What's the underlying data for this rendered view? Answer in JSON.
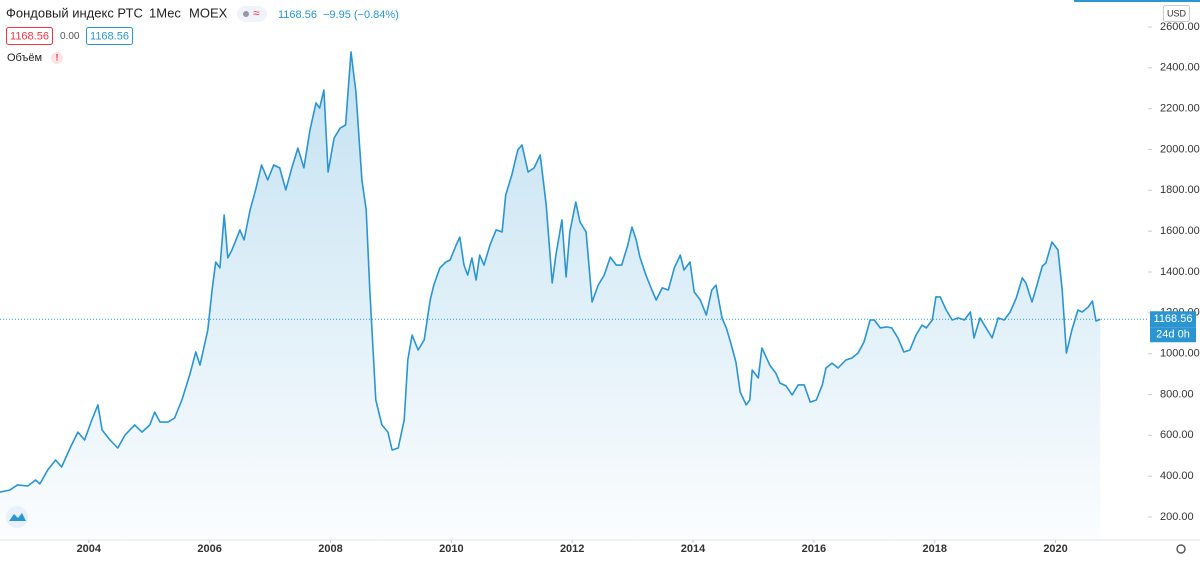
{
  "header": {
    "title": "Фондовый индекс РТС",
    "interval": "1Мес",
    "exchange": "MOEX",
    "price": "1168.56",
    "change": "−9.95 (−0.84%)",
    "bid": "1168.56",
    "spread": "0.00",
    "ask": "1168.56",
    "volume": "Объём",
    "alert": "!",
    "currency": "USD",
    "countdown": "24d 0h"
  },
  "chart_data": {
    "type": "area",
    "color": "#2a95d0",
    "last_value": 1168.56,
    "xlim": [
      2002.53,
      2021.53
    ],
    "ylim": [
      200,
      2600
    ],
    "xticks": [
      2004,
      2006,
      2008,
      2010,
      2012,
      2014,
      2016,
      2018,
      2020
    ],
    "yticks": [
      {
        "value": 200,
        "label": "200.00"
      },
      {
        "value": 400,
        "label": "400.00"
      },
      {
        "value": 600,
        "label": "600.00"
      },
      {
        "value": 800,
        "label": "800.00"
      },
      {
        "value": 1000,
        "label": "1000.00"
      },
      {
        "value": 1200,
        "label": "1200.00"
      },
      {
        "value": 1400,
        "label": "1400.00"
      },
      {
        "value": 1600,
        "label": "1600.00"
      },
      {
        "value": 1800,
        "label": "1800.00"
      },
      {
        "value": 2000,
        "label": "2000.00"
      },
      {
        "value": 2200,
        "label": "2200.00"
      },
      {
        "value": 2400,
        "label": "2400.00"
      },
      {
        "value": 2600,
        "label": "2600.00"
      }
    ],
    "x": [
      2002.53,
      2002.69,
      2002.82,
      2002.99,
      2003.12,
      2003.19,
      2003.32,
      2003.45,
      2003.55,
      2003.69,
      2003.82,
      2003.93,
      2004.05,
      2004.15,
      2004.22,
      2004.35,
      2004.48,
      2004.6,
      2004.76,
      2004.88,
      2005.01,
      2005.09,
      2005.18,
      2005.31,
      2005.42,
      2005.54,
      2005.67,
      2005.77,
      2005.84,
      2005.97,
      2006.04,
      2006.1,
      2006.17,
      2006.24,
      2006.3,
      2006.37,
      2006.5,
      2006.57,
      2006.67,
      2006.76,
      2006.86,
      2006.96,
      2007.06,
      2007.16,
      2007.26,
      2007.36,
      2007.46,
      2007.56,
      2007.66,
      2007.76,
      2007.82,
      2007.89,
      2007.96,
      2008.06,
      2008.16,
      2008.25,
      2008.34,
      2008.42,
      2008.52,
      2008.59,
      2008.65,
      2008.75,
      2008.85,
      2008.95,
      2009.02,
      2009.12,
      2009.22,
      2009.28,
      2009.35,
      2009.45,
      2009.55,
      2009.65,
      2009.71,
      2009.81,
      2009.91,
      2009.98,
      2010.08,
      2010.14,
      2010.21,
      2010.27,
      2010.34,
      2010.41,
      2010.47,
      2010.54,
      2010.64,
      2010.74,
      2010.84,
      2010.9,
      2011.0,
      2011.1,
      2011.17,
      2011.27,
      2011.37,
      2011.47,
      2011.57,
      2011.67,
      2011.73,
      2011.83,
      2011.9,
      2011.96,
      2012.06,
      2012.13,
      2012.23,
      2012.33,
      2012.43,
      2012.53,
      2012.63,
      2012.73,
      2012.82,
      2012.92,
      2012.99,
      2013.06,
      2013.12,
      2013.22,
      2013.32,
      2013.39,
      2013.49,
      2013.59,
      2013.69,
      2013.79,
      2013.85,
      2013.95,
      2014.02,
      2014.12,
      2014.22,
      2014.31,
      2014.38,
      2014.48,
      2014.55,
      2014.61,
      2014.71,
      2014.78,
      2014.88,
      2014.94,
      2014.98,
      2015.08,
      2015.14,
      2015.27,
      2015.37,
      2015.44,
      2015.54,
      2015.64,
      2015.74,
      2015.84,
      2015.94,
      2016.04,
      2016.14,
      2016.2,
      2016.3,
      2016.4,
      2016.53,
      2016.63,
      2016.73,
      2016.83,
      2016.93,
      2017.0,
      2017.1,
      2017.2,
      2017.29,
      2017.39,
      2017.49,
      2017.59,
      2017.69,
      2017.79,
      2017.86,
      2017.96,
      2018.02,
      2018.09,
      2018.19,
      2018.29,
      2018.39,
      2018.49,
      2018.59,
      2018.65,
      2018.75,
      2018.85,
      2018.95,
      2019.05,
      2019.15,
      2019.25,
      2019.35,
      2019.45,
      2019.51,
      2019.61,
      2019.68,
      2019.78,
      2019.84,
      2019.94,
      2020.04,
      2020.11,
      2020.18,
      2020.27,
      2020.37,
      2020.44,
      2020.54,
      2020.61,
      2020.67,
      2020.74
    ],
    "values": [
      322,
      332,
      357,
      352,
      381,
      362,
      430,
      479,
      445,
      538,
      616,
      577,
      675,
      749,
      626,
      577,
      538,
      602,
      651,
      616,
      651,
      714,
      665,
      665,
      685,
      773,
      896,
      1008,
      944,
      1116,
      1312,
      1449,
      1420,
      1679,
      1469,
      1508,
      1606,
      1557,
      1704,
      1802,
      1924,
      1851,
      1924,
      1910,
      1802,
      1910,
      2007,
      1910,
      2096,
      2228,
      2203,
      2291,
      1890,
      2056,
      2105,
      2120,
      2478,
      2282,
      1851,
      1704,
      1312,
      773,
      651,
      616,
      528,
      538,
      675,
      969,
      1091,
      1018,
      1067,
      1263,
      1336,
      1420,
      1449,
      1459,
      1532,
      1571,
      1434,
      1385,
      1469,
      1361,
      1483,
      1434,
      1532,
      1606,
      1596,
      1777,
      1875,
      1998,
      2022,
      1890,
      1910,
      1973,
      1728,
      1346,
      1483,
      1655,
      1376,
      1596,
      1743,
      1645,
      1596,
      1253,
      1336,
      1385,
      1473,
      1434,
      1434,
      1532,
      1620,
      1557,
      1473,
      1385,
      1312,
      1263,
      1322,
      1312,
      1420,
      1483,
      1410,
      1449,
      1302,
      1263,
      1189,
      1312,
      1336,
      1175,
      1126,
      1067,
      959,
      812,
      749,
      773,
      920,
      881,
      1028,
      944,
      905,
      856,
      842,
      798,
      847,
      847,
      763,
      773,
      847,
      930,
      954,
      930,
      969,
      979,
      1003,
      1057,
      1165,
      1165,
      1126,
      1131,
      1126,
      1077,
      1008,
      1018,
      1091,
      1140,
      1126,
      1165,
      1278,
      1278,
      1214,
      1165,
      1175,
      1165,
      1204,
      1077,
      1175,
      1126,
      1077,
      1175,
      1165,
      1204,
      1273,
      1371,
      1346,
      1253,
      1322,
      1429,
      1444,
      1547,
      1508,
      1312,
      1003,
      1116,
      1214,
      1204,
      1228,
      1258,
      1160,
      1168.56
    ]
  }
}
